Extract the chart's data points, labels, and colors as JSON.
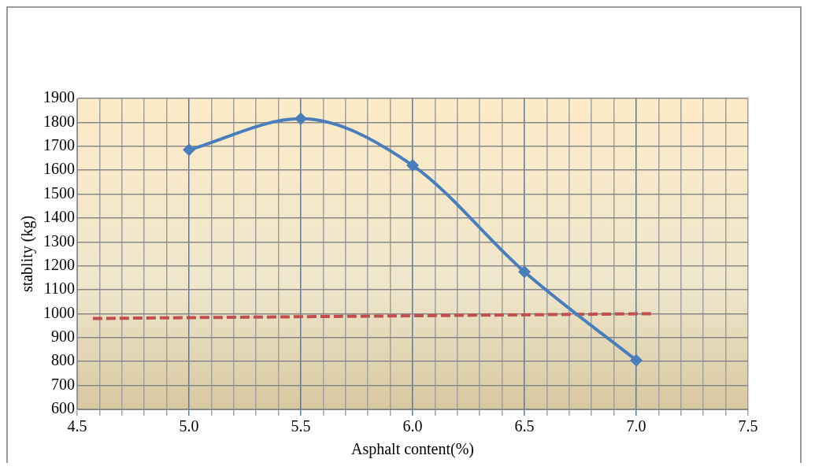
{
  "chart_data": {
    "type": "line",
    "xlabel": "Asphalt content(%)",
    "ylabel": "stablity (kg)",
    "xlim": [
      4.5,
      7.5
    ],
    "ylim": [
      600,
      1900
    ],
    "xticks": [
      4.5,
      {
        "value": 4.6,
        "label": null
      },
      {
        "value": 4.7,
        "label": null
      },
      {
        "value": 4.8,
        "label": null
      },
      {
        "value": 4.9,
        "label": null
      },
      "5.0",
      {
        "value": 5.1,
        "label": null
      },
      {
        "value": 5.2,
        "label": null
      },
      {
        "value": 5.3,
        "label": null
      },
      {
        "value": 5.4,
        "label": null
      },
      5.5,
      {
        "value": 5.6,
        "label": null
      },
      {
        "value": 5.7,
        "label": null
      },
      {
        "value": 5.8,
        "label": null
      },
      {
        "value": 5.9,
        "label": null
      },
      {
        "value": 6,
        "label": "6.0"
      },
      {
        "value": 6.1,
        "label": null
      },
      {
        "value": 6.2,
        "label": null
      },
      {
        "value": 6.3,
        "label": null
      },
      {
        "value": 6.4,
        "label": null
      },
      6.5,
      {
        "value": 6.6,
        "label": null
      },
      {
        "value": 6.7,
        "label": null
      },
      {
        "value": 6.8,
        "label": null
      },
      {
        "value": 6.9,
        "label": null
      },
      {
        "value": 7,
        "label": "7.0"
      },
      {
        "value": 7.1,
        "label": null
      },
      {
        "value": 7.2,
        "label": null
      },
      {
        "value": 7.3,
        "label": null
      },
      {
        "value": 7.4,
        "label": null
      },
      7.5
    ],
    "yticks": [
      600,
      700,
      800,
      900,
      1000,
      1100,
      1200,
      1300,
      1400,
      1500,
      1600,
      1700,
      1800,
      1900
    ],
    "grid": true,
    "legend": false,
    "series": [
      {
        "type": "line",
        "color": "#4a7ebb",
        "x": [
          5.0,
          5.5,
          6.0,
          6.5,
          7.0
        ],
        "values": [
          1685,
          1815,
          1620,
          1175,
          805
        ],
        "marker": "diamond",
        "line_style": "solid"
      },
      {
        "type": "line",
        "color": "#c0504d",
        "x": [
          4.57,
          7.07
        ],
        "values": [
          980,
          1000
        ],
        "marker": "none",
        "line_style": "dashed"
      }
    ]
  }
}
